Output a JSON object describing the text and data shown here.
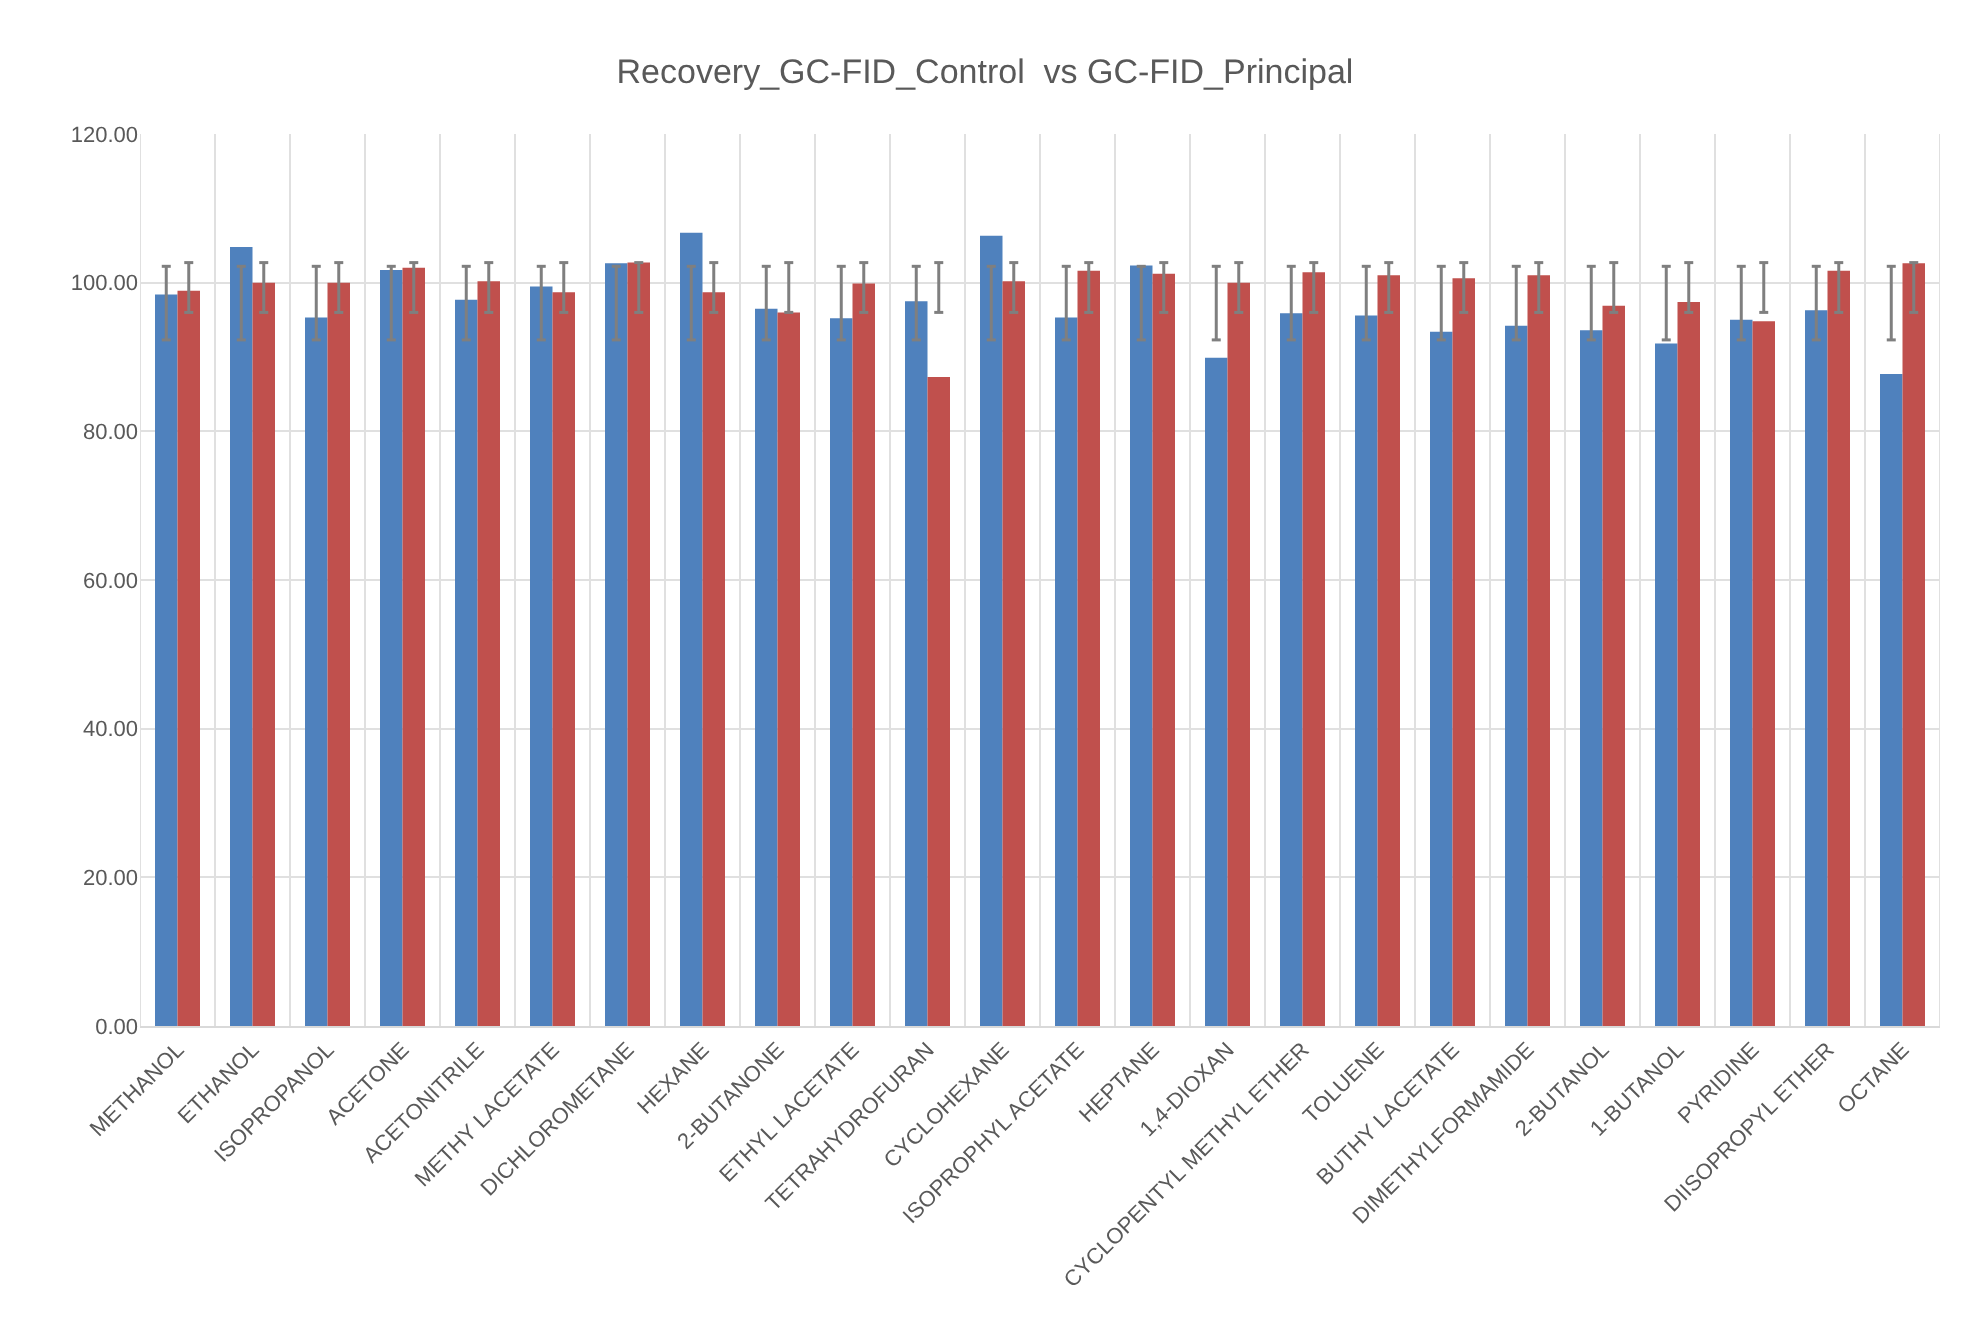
{
  "chart_data": {
    "type": "bar",
    "title": "Recovery_GC-FID_Control  vs GC-FID_Principal",
    "categories": [
      "METHANOL",
      "ETHANOL",
      "ISOPROPANOL",
      "ACETONE",
      "ACETONITRILE",
      "METHY LACETATE",
      "DICHLOROMETANE",
      "HEXANE",
      "2-BUTANONE",
      "ETHYL LACETATE",
      "TETRAHYDROFURAN",
      "CYCLOHEXANE",
      "ISOPROPHYL ACETATE",
      "HEPTANE",
      "1,4-DIOXAN",
      "CYCLOPENTYL METHYL ETHER",
      "TOLUENE",
      "BUTHY LACETATE",
      "DIMETHYLFORMAMIDE",
      "2-BUTANOL",
      "1-BUTANOL",
      "PYRIDINE",
      "DIISOPROPYL ETHER",
      "OCTANE"
    ],
    "series": [
      {
        "color": "#4f81bd",
        "values": [
          98.4,
          104.8,
          95.3,
          101.7,
          97.7,
          99.5,
          102.6,
          106.7,
          96.5,
          95.2,
          97.5,
          106.3,
          95.3,
          102.3,
          89.9,
          95.9,
          95.6,
          93.4,
          94.2,
          93.6,
          91.8,
          95.0,
          96.3,
          87.7
        ],
        "errors": [
          [
            92.3,
            102.2
          ],
          [
            92.3,
            102.2
          ],
          [
            92.3,
            102.2
          ],
          [
            92.3,
            102.2
          ],
          [
            92.3,
            102.2
          ],
          [
            92.3,
            102.2
          ],
          [
            92.3,
            102.2
          ],
          [
            92.3,
            102.2
          ],
          [
            92.3,
            102.2
          ],
          [
            92.3,
            102.2
          ],
          [
            92.3,
            102.2
          ],
          [
            92.3,
            102.2
          ],
          [
            92.3,
            102.2
          ],
          [
            92.3,
            102.2
          ],
          [
            92.3,
            102.2
          ],
          [
            92.3,
            102.2
          ],
          [
            92.3,
            102.2
          ],
          [
            92.3,
            102.2
          ],
          [
            92.3,
            102.2
          ],
          [
            92.3,
            102.2
          ],
          [
            92.3,
            102.2
          ],
          [
            92.3,
            102.2
          ],
          [
            92.3,
            102.2
          ],
          [
            92.3,
            102.2
          ]
        ]
      },
      {
        "color": "#c0504d",
        "values": [
          98.9,
          100.0,
          100.0,
          102.0,
          100.2,
          98.7,
          102.7,
          98.7,
          96.0,
          99.9,
          87.3,
          100.2,
          101.6,
          101.2,
          100.0,
          101.4,
          101.0,
          100.6,
          101.0,
          96.9,
          97.4,
          94.8,
          101.6,
          102.6
        ],
        "errors": [
          [
            96.0,
            102.7
          ],
          [
            96.0,
            102.7
          ],
          [
            96.0,
            102.7
          ],
          [
            96.0,
            102.7
          ],
          [
            96.0,
            102.7
          ],
          [
            96.0,
            102.7
          ],
          [
            96.0,
            102.7
          ],
          [
            96.0,
            102.7
          ],
          [
            96.0,
            102.7
          ],
          [
            96.0,
            102.7
          ],
          [
            96.0,
            102.7
          ],
          [
            96.0,
            102.7
          ],
          [
            96.0,
            102.7
          ],
          [
            96.0,
            102.7
          ],
          [
            96.0,
            102.7
          ],
          [
            96.0,
            102.7
          ],
          [
            96.0,
            102.7
          ],
          [
            96.0,
            102.7
          ],
          [
            96.0,
            102.7
          ],
          [
            96.0,
            102.7
          ],
          [
            96.0,
            102.7
          ],
          [
            96.0,
            102.7
          ],
          [
            96.0,
            102.7
          ],
          [
            96.0,
            102.7
          ]
        ]
      }
    ],
    "ylim": [
      0,
      120
    ],
    "yticks": [
      {
        "value": 0,
        "label": "0.00"
      },
      {
        "value": 20,
        "label": "20.00"
      },
      {
        "value": 40,
        "label": "40.00"
      },
      {
        "value": 60,
        "label": "60.00"
      },
      {
        "value": 80,
        "label": "80.00"
      },
      {
        "value": 100,
        "label": "100.00"
      },
      {
        "value": 120,
        "label": "120.00"
      }
    ],
    "grid": true
  }
}
